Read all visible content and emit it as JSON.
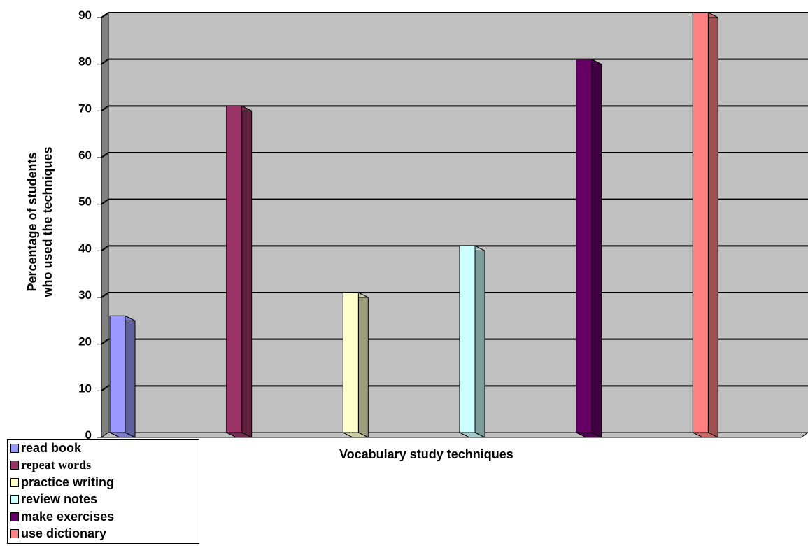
{
  "chart_data": {
    "type": "bar",
    "title": "",
    "xlabel": "Vocabulary study techniques",
    "ylabel_lines": [
      "Percentage of students",
      "who used the techniques"
    ],
    "ylim": [
      0,
      90
    ],
    "yticks": [
      0,
      10,
      20,
      30,
      40,
      50,
      60,
      70,
      80,
      90
    ],
    "grid": true,
    "legend_position": "bottom-left",
    "series": [
      {
        "name": "read book",
        "values": [
          25
        ],
        "color": "#9999FF",
        "font": "sans"
      },
      {
        "name": "repeat words",
        "values": [
          70
        ],
        "color": "#993366",
        "font": "serif"
      },
      {
        "name": "practice writing",
        "values": [
          30
        ],
        "color": "#FFFFCC",
        "font": "sans"
      },
      {
        "name": "review notes",
        "values": [
          40
        ],
        "color": "#CCFFFF",
        "font": "sans"
      },
      {
        "name": "make exercises",
        "values": [
          80
        ],
        "color": "#660066",
        "font": "sans"
      },
      {
        "name": "use dictionary",
        "values": [
          90
        ],
        "color": "#FF8080",
        "font": "sans"
      }
    ]
  }
}
